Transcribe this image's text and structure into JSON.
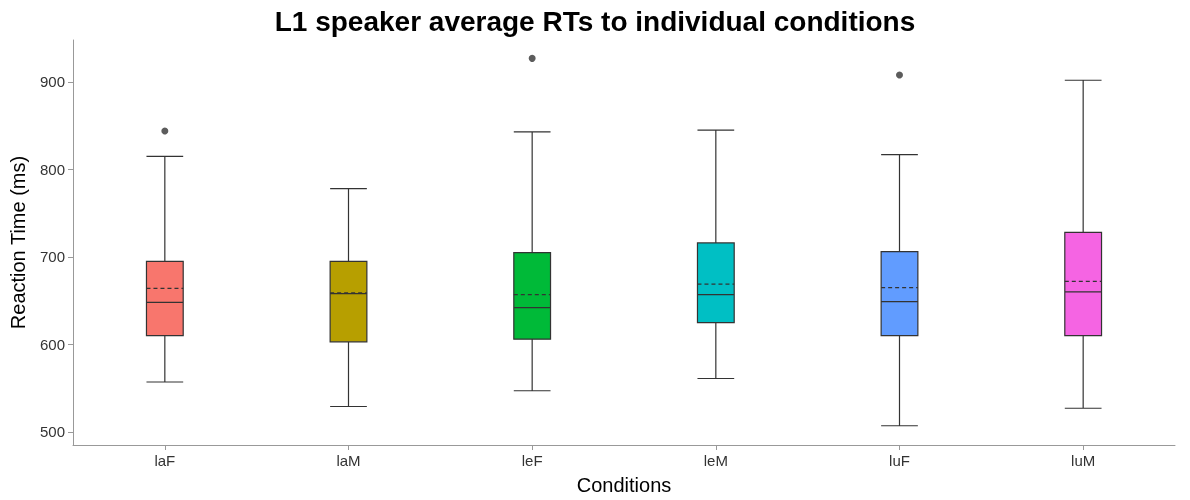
{
  "chart_data": {
    "type": "box",
    "title": "L1 speaker average RTs to individual conditions",
    "xlabel": "Conditions",
    "ylabel": "Reaction Time (ms)",
    "categories": [
      "laF",
      "laM",
      "leF",
      "leM",
      "luF",
      "luM"
    ],
    "colors": [
      "#f8766d",
      "#b79f00",
      "#00ba38",
      "#00bfc4",
      "#619cff",
      "#f564e3"
    ],
    "boxes": [
      {
        "low": 557,
        "q1": 610,
        "median": 648,
        "q3": 695,
        "high": 815,
        "mean": 664,
        "outliers": [
          844
        ]
      },
      {
        "low": 529,
        "q1": 603,
        "median": 658,
        "q3": 695,
        "high": 778,
        "mean": 659
      },
      {
        "low": 547,
        "q1": 606,
        "median": 642,
        "q3": 705,
        "high": 843,
        "mean": 657,
        "outliers": [
          927
        ]
      },
      {
        "low": 561,
        "q1": 625,
        "median": 657,
        "q3": 716,
        "high": 845,
        "mean": 669
      },
      {
        "low": 507,
        "q1": 610,
        "median": 649,
        "q3": 706,
        "high": 817,
        "mean": 665,
        "outliers": [
          908
        ]
      },
      {
        "low": 527,
        "q1": 610,
        "median": 660,
        "q3": 728,
        "high": 902,
        "mean": 672
      }
    ],
    "ylim": [
      485,
      948
    ],
    "yticks": [
      500,
      600,
      700,
      800,
      900
    ],
    "grid": false
  }
}
